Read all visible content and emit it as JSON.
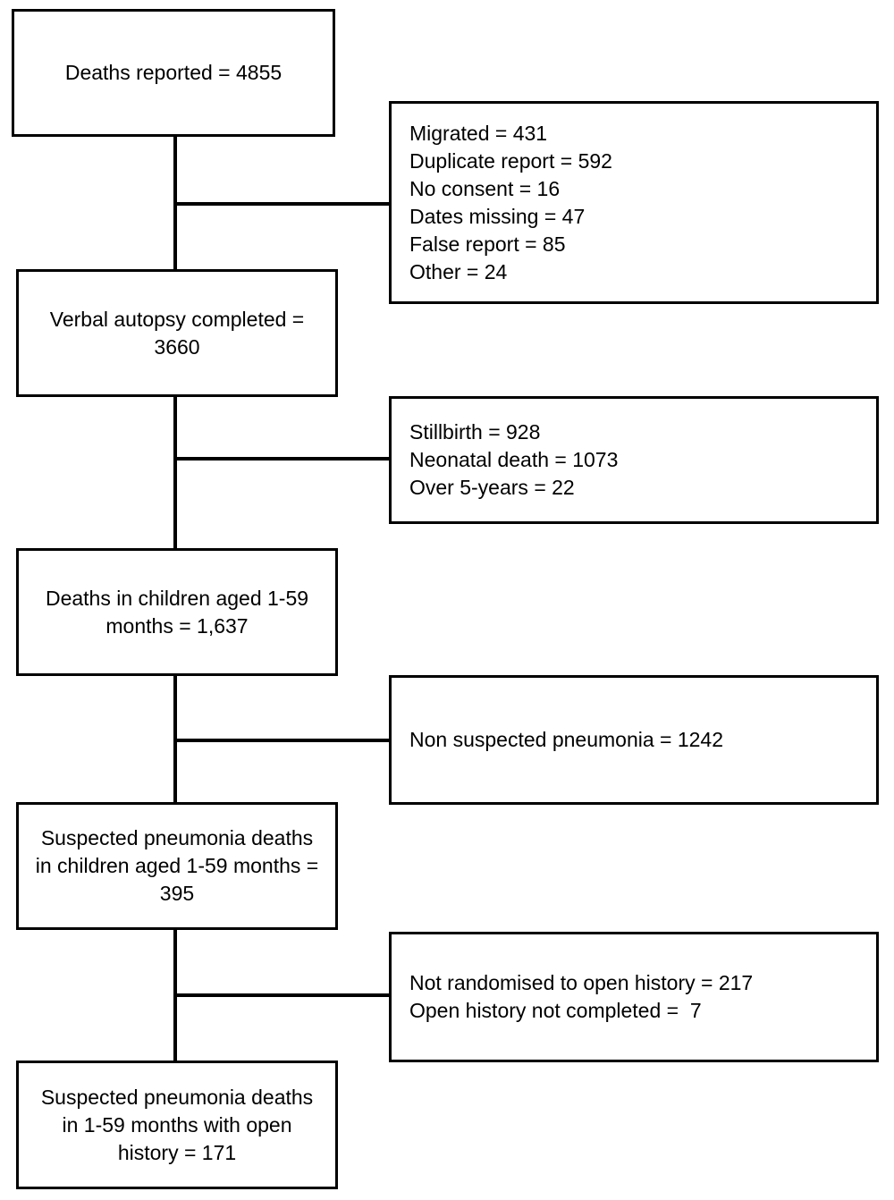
{
  "flow": {
    "main_boxes": [
      {
        "text": [
          "Deaths reported = 4855"
        ]
      },
      {
        "text": [
          "Verbal autopsy completed =",
          "3660"
        ]
      },
      {
        "text": [
          "Deaths in children aged 1-59",
          "months = 1,637"
        ]
      },
      {
        "text": [
          "Suspected pneumonia deaths",
          "in children aged 1-59 months =",
          "395"
        ]
      },
      {
        "text": [
          "Suspected pneumonia deaths",
          "in 1-59 months with open",
          "history = 171"
        ]
      }
    ],
    "exclusion_boxes": [
      {
        "lines": [
          "Migrated = 431",
          "Duplicate report = 592",
          "No consent = 16",
          "Dates missing = 47",
          "False report = 85",
          "Other = 24"
        ]
      },
      {
        "lines": [
          "Stillbirth = 928",
          "Neonatal death = 1073",
          "Over 5-years = 22"
        ]
      },
      {
        "lines": [
          "Non suspected pneumonia = 1242"
        ]
      },
      {
        "lines": [
          "Not randomised to open history = 217",
          "Open history not completed =  7"
        ]
      }
    ]
  }
}
